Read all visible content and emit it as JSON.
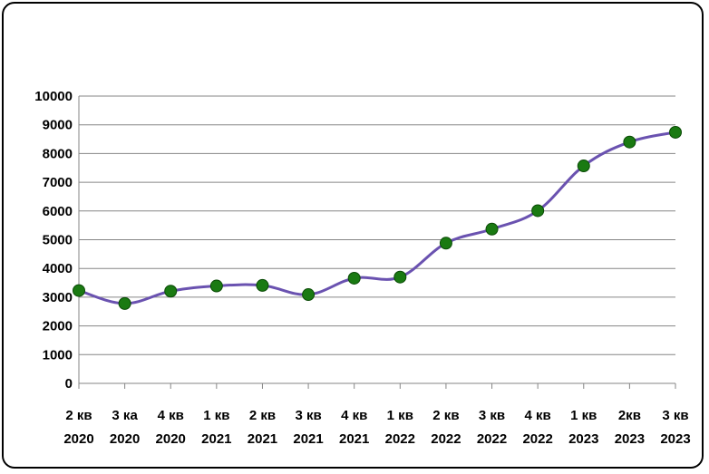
{
  "chart_data": {
    "type": "line",
    "categories": [
      [
        "2 кв",
        "2020"
      ],
      [
        "3 ка",
        "2020"
      ],
      [
        "4 кв",
        "2020"
      ],
      [
        "1 кв",
        "2021"
      ],
      [
        "2 кв",
        "2021"
      ],
      [
        "3 кв",
        "2021"
      ],
      [
        "4 кв",
        "2021"
      ],
      [
        "1 кв",
        "2022"
      ],
      [
        "2 кв",
        "2022"
      ],
      [
        "3 кв",
        "2022"
      ],
      [
        "4 кв",
        "2022"
      ],
      [
        "1 кв",
        "2023"
      ],
      [
        "2кв",
        "2023"
      ],
      [
        "3 кв",
        "2023"
      ]
    ],
    "series": [
      {
        "values": [
          3230,
          2780,
          3210,
          3390,
          3410,
          3090,
          3660,
          3700,
          4880,
          5370,
          6010,
          7570,
          8400,
          8740
        ]
      }
    ],
    "ylim": [
      0,
      10000
    ],
    "yticks": [
      0,
      1000,
      2000,
      3000,
      4000,
      5000,
      6000,
      7000,
      8000,
      9000,
      10000
    ],
    "grid": true,
    "smooth": true,
    "colors": {
      "line": "#6a52b0",
      "marker": "#1a7a12",
      "marker_edge": "#0a4a06",
      "grid": "#868686"
    }
  }
}
